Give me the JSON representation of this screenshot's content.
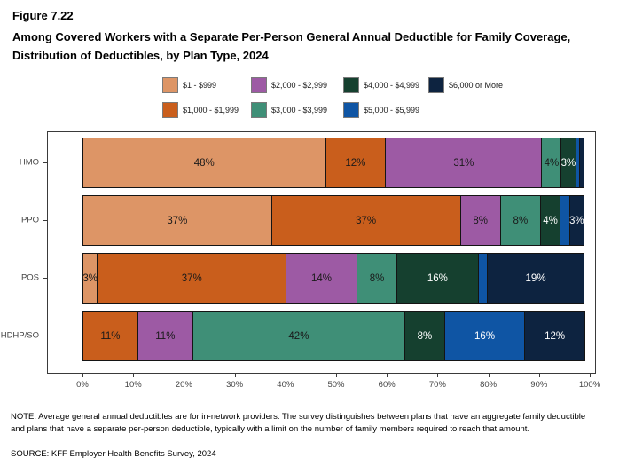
{
  "figure_label": "Figure 7.22",
  "title": "Among Covered Workers with a Separate Per-Person General Annual Deductible for Family Coverage, Distribution of Deductibles, by Plan Type, 2024",
  "note": "NOTE: Average general annual deductibles are for in-network providers. The survey distinguishes between plans that have an aggregate family deductible and plans that have a separate per-person deductible, typically with a limit on the number of family members required to reach that amount.",
  "source": "SOURCE: KFF Employer Health Benefits Survey, 2024",
  "chart_data": {
    "type": "bar",
    "subtype": "horizontal-stacked-100-percent",
    "title": "Among Covered Workers with a Separate Per-Person General Annual Deductible for Family Coverage, Distribution of Deductibles, by Plan Type, 2024",
    "xlabel": "",
    "ylabel": "",
    "xlim": [
      0,
      100
    ],
    "grid": false,
    "legend_position": "top",
    "categories": [
      "HMO",
      "PPO",
      "POS",
      "HDHP/SO"
    ],
    "legend": [
      {
        "label": "$1 - $999",
        "color": "#DD9566",
        "text_color": "#1a1a1a"
      },
      {
        "label": "$1,000 - $1,999",
        "color": "#C95E1C",
        "text_color": "#1a1a1a"
      },
      {
        "label": "$2,000 - $2,999",
        "color": "#9D5AA4",
        "text_color": "#1a1a1a"
      },
      {
        "label": "$3,000 - $3,999",
        "color": "#3F8F77",
        "text_color": "#1a1a1a"
      },
      {
        "label": "$4,000 - $4,999",
        "color": "#15402F",
        "text_color": "#ffffff"
      },
      {
        "label": "$5,000 - $5,999",
        "color": "#0F55A4",
        "text_color": "#ffffff"
      },
      {
        "label": "$6,000 or More",
        "color": "#0D2340",
        "text_color": "#ffffff"
      }
    ],
    "legend_rows": [
      [
        0,
        2,
        4,
        6
      ],
      [
        1,
        3,
        5
      ]
    ],
    "rows": [
      {
        "category": "HMO",
        "values": [
          48,
          12,
          31,
          4,
          3,
          1,
          1
        ],
        "labels": [
          "48%",
          "12%",
          "31%",
          "4%",
          "3%",
          "",
          ""
        ]
      },
      {
        "category": "PPO",
        "values": [
          37,
          37,
          8,
          8,
          4,
          2,
          3
        ],
        "labels": [
          "37%",
          "37%",
          "8%",
          "8%",
          "4%",
          "",
          "3%"
        ]
      },
      {
        "category": "POS",
        "values": [
          3,
          37,
          14,
          8,
          16,
          2,
          19
        ],
        "labels": [
          "3%",
          "37%",
          "14%",
          "8%",
          "16%",
          "",
          "19%"
        ]
      },
      {
        "category": "HDHP/SO",
        "values": [
          0,
          11,
          11,
          42,
          8,
          16,
          12
        ],
        "labels": [
          "",
          "11%",
          "11%",
          "42%",
          "8%",
          "16%",
          "12%"
        ]
      }
    ],
    "x_ticks": [
      "0%",
      "10%",
      "20%",
      "30%",
      "40%",
      "50%",
      "60%",
      "70%",
      "80%",
      "90%",
      "100%"
    ]
  }
}
